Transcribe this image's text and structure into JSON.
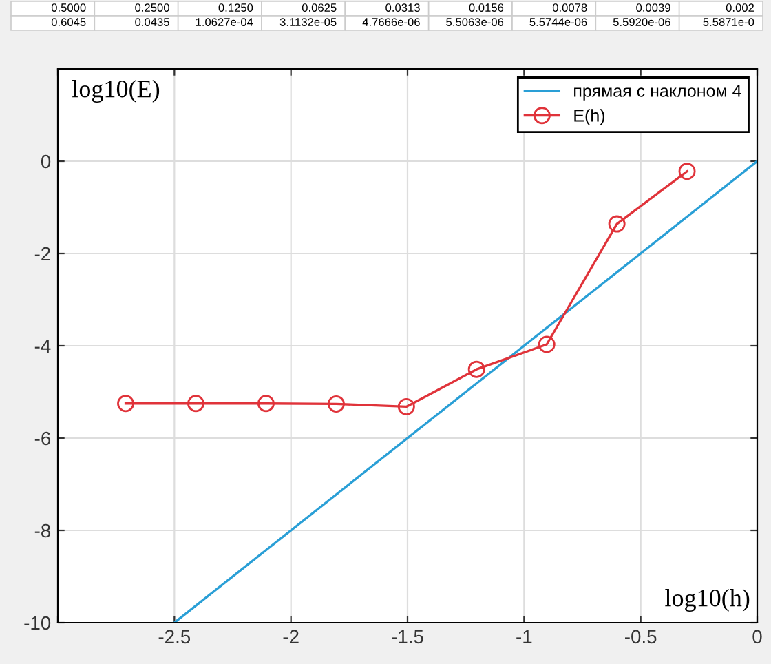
{
  "chart_data": {
    "type": "line",
    "xlabel": "log10(h)",
    "ylabel": "log10(E)",
    "x": [
      -0.301,
      -0.602,
      -0.903,
      -1.204,
      -1.505,
      -1.806,
      -2.107,
      -2.408,
      -2.709
    ],
    "series": [
      {
        "name": "прямая с наклоном 4",
        "color": "#2a9fd6",
        "marker": "none",
        "x": [
          -2.5,
          0
        ],
        "values": [
          -10,
          0
        ]
      },
      {
        "name": "E(h)",
        "color": "#e0333a",
        "marker": "circle",
        "values": [
          -0.22,
          -1.36,
          -3.97,
          -4.51,
          -5.32,
          -5.26,
          -5.25,
          -5.25,
          -5.25
        ]
      }
    ],
    "xlim": [
      -3,
      0
    ],
    "xticks": [
      {
        "value": -3,
        "label": null
      },
      -2.5,
      -2,
      -1.5,
      -1,
      -0.5,
      0
    ],
    "ylim": [
      -10,
      2
    ],
    "yticks": [
      -10,
      -8,
      -6,
      -4,
      -2,
      0,
      {
        "value": 2,
        "label": null
      }
    ],
    "grid": true,
    "legend": "top right",
    "annotations": [
      "0.5000",
      "0.2500",
      "0.1250",
      "0.0625",
      "0.0313",
      "0.0156",
      "0.0078",
      "0.0039",
      "0.002",
      "0.6045",
      "0.0435",
      "1.0627e-04",
      "3.1132e-05",
      "4.7666e-06",
      "5.5063e-06",
      "5.5744e-06",
      "5.5920e-06",
      "5.5871e-0"
    ]
  }
}
